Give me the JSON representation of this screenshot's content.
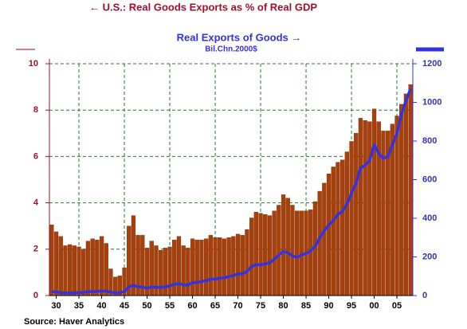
{
  "chart_data": {
    "type": "bar",
    "source": "Source: Haver Analytics",
    "y2_label": "Bil.Chn.2000$",
    "categories": [
      null,
      "30",
      null,
      null,
      null,
      null,
      "35",
      null,
      null,
      null,
      null,
      "40",
      null,
      null,
      null,
      null,
      "45",
      null,
      null,
      null,
      null,
      "50",
      null,
      null,
      null,
      null,
      "55",
      null,
      null,
      null,
      null,
      "60",
      null,
      null,
      null,
      null,
      "65",
      null,
      null,
      null,
      null,
      "70",
      null,
      null,
      null,
      null,
      "75",
      null,
      null,
      null,
      null,
      "80",
      null,
      null,
      null,
      null,
      "85",
      null,
      null,
      null,
      null,
      "90",
      null,
      null,
      null,
      null,
      "95",
      null,
      null,
      null,
      null,
      "00",
      null,
      null,
      null,
      null,
      "05",
      null,
      null,
      null
    ],
    "series": [
      {
        "name": "← U.S.: Real Goods Exports as % of Real GDP",
        "color": "#a8400c",
        "type": "bar",
        "values": [
          3.05,
          2.75,
          2.55,
          2.15,
          2.2,
          2.15,
          2.1,
          2.0,
          2.35,
          2.45,
          2.4,
          2.55,
          2.25,
          1.15,
          0.8,
          0.85,
          1.2,
          3.0,
          3.45,
          2.6,
          2.6,
          2.05,
          2.35,
          2.15,
          1.95,
          2.05,
          2.1,
          2.4,
          2.55,
          2.15,
          2.05,
          2.45,
          2.4,
          2.4,
          2.45,
          2.6,
          2.5,
          2.5,
          2.45,
          2.5,
          2.55,
          2.65,
          2.6,
          2.85,
          3.35,
          3.6,
          3.55,
          3.5,
          3.45,
          3.65,
          3.9,
          4.35,
          4.2,
          3.9,
          3.65,
          3.65,
          3.65,
          3.7,
          4.05,
          4.5,
          4.85,
          5.25,
          5.55,
          5.75,
          5.85,
          6.2,
          6.65,
          7.0,
          7.65,
          7.55,
          7.5,
          8.05,
          7.5,
          7.1,
          7.1,
          7.4,
          7.75,
          8.25,
          8.7,
          9.1
        ]
      },
      {
        "name": "Real Exports of Goods →",
        "color": "#3333dd",
        "type": "line",
        "axis": "y2",
        "values": [
          20,
          18,
          15,
          13,
          13,
          14,
          15,
          16,
          20,
          20,
          21,
          24,
          24,
          17,
          14,
          15,
          20,
          45,
          52,
          45,
          45,
          38,
          45,
          43,
          42,
          45,
          50,
          58,
          62,
          55,
          55,
          66,
          68,
          72,
          77,
          85,
          85,
          90,
          92,
          98,
          103,
          112,
          113,
          125,
          150,
          160,
          158,
          165,
          170,
          188,
          210,
          228,
          222,
          205,
          198,
          210,
          218,
          230,
          255,
          300,
          335,
          365,
          390,
          420,
          435,
          475,
          530,
          580,
          660,
          675,
          700,
          780,
          735,
          710,
          720,
          780,
          840,
          940,
          1010,
          1070
        ]
      }
    ],
    "ylim": [
      0,
      10
    ],
    "yticks": [
      0,
      2,
      4,
      6,
      8,
      10
    ],
    "y2lim": [
      0,
      1200
    ],
    "y2ticks": [
      0,
      200,
      400,
      600,
      800,
      1000,
      1200
    ],
    "grid": true
  }
}
